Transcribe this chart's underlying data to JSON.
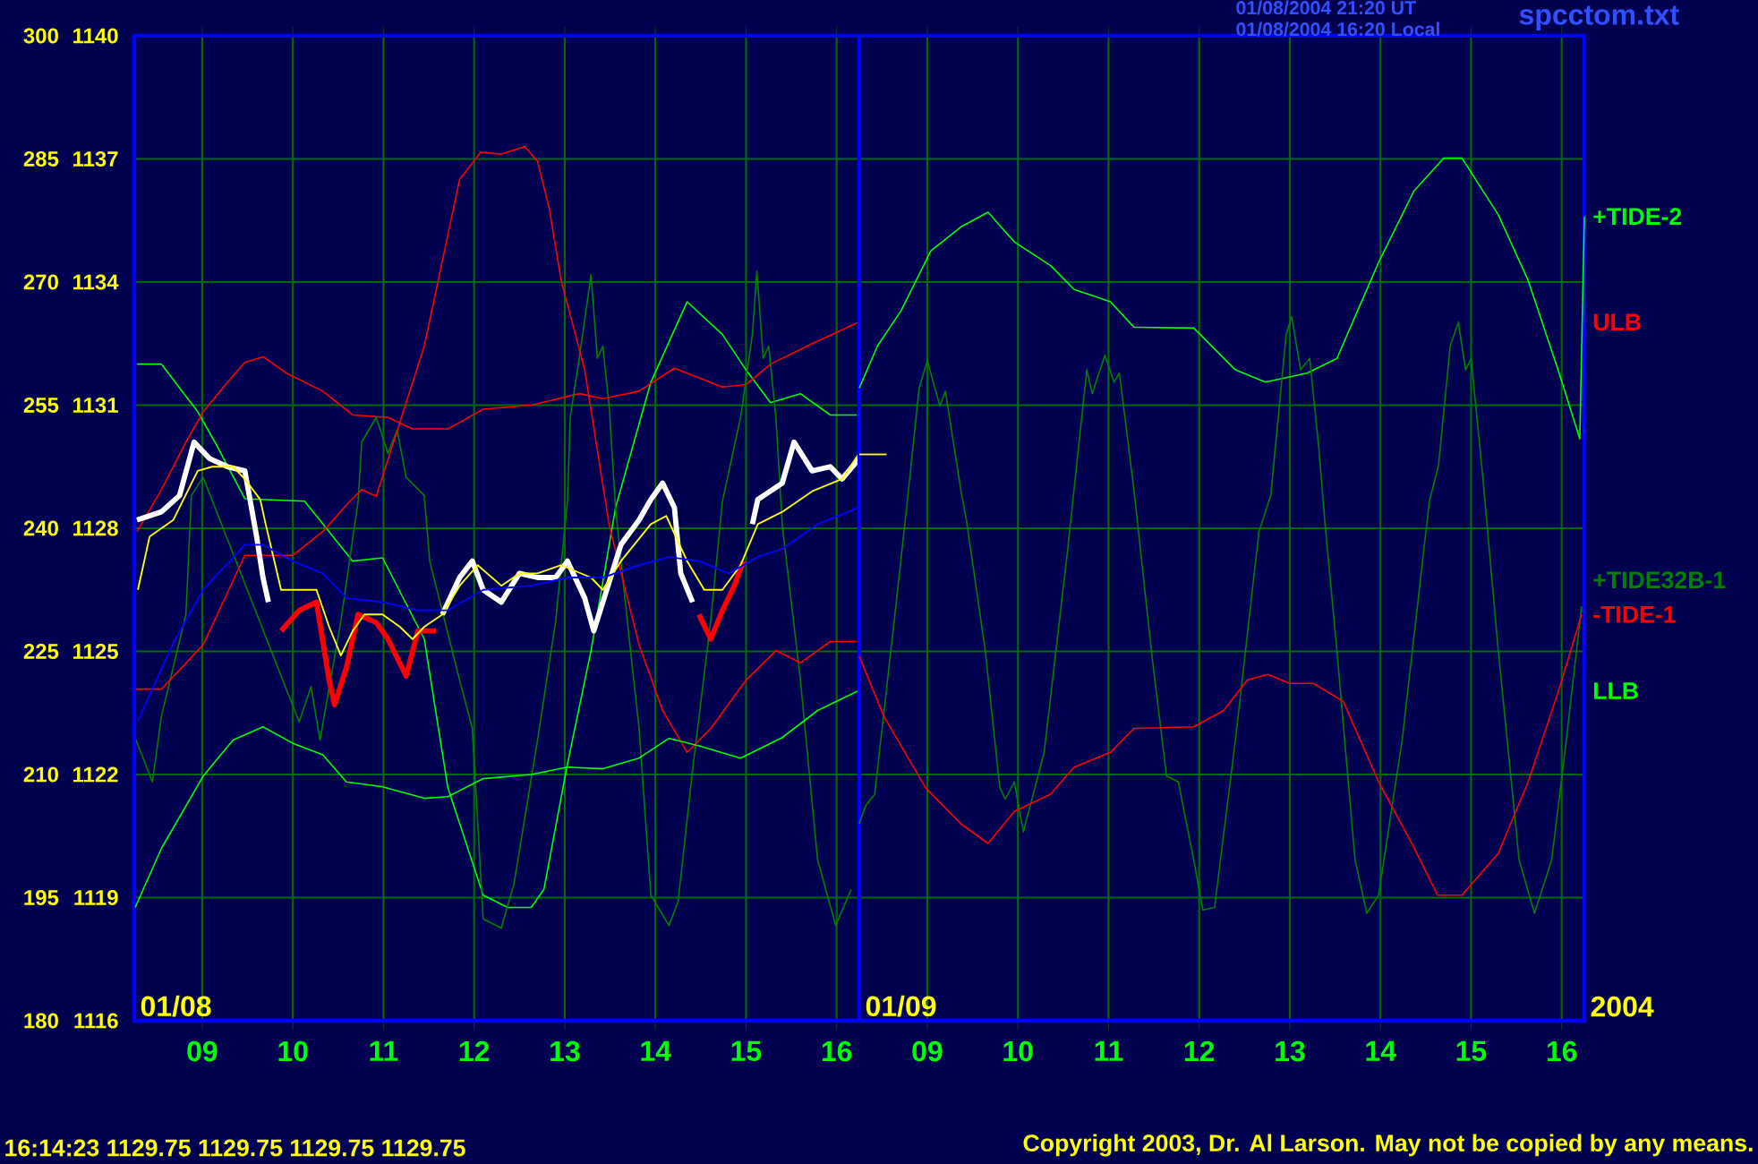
{
  "chart_data": [
    {
      "type": "line",
      "xlim": [
        8.25,
        16.25
      ],
      "xticks": [
        {
          "value": 9,
          "label": "09"
        },
        {
          "value": 10,
          "label": "10"
        },
        {
          "value": 11,
          "label": "11"
        },
        {
          "value": 12,
          "label": "12"
        },
        {
          "value": 13,
          "label": "13"
        },
        {
          "value": 14,
          "label": "14"
        },
        {
          "value": 15,
          "label": "15"
        },
        {
          "value": 16,
          "label": "16"
        }
      ],
      "ylim": [
        180,
        300
      ],
      "yticks": [
        180,
        195,
        210,
        225,
        240,
        255,
        270,
        285,
        300
      ],
      "y2lim": [
        1116,
        1140
      ],
      "y2ticks": [
        1116,
        1119,
        1122,
        1125,
        1128,
        1131,
        1134,
        1137,
        1140
      ],
      "grid": true,
      "series": [
        {
          "color": "#00ff00",
          "axis": "y",
          "x": [
            8.28,
            8.55,
            8.95,
            9.14,
            9.47,
            10.13,
            10.66,
            10.99,
            11.45,
            11.71,
            12.1,
            12.37,
            12.63,
            12.77,
            13.03,
            13.29,
            13.56,
            13.95,
            14.35,
            14.74,
            15.0,
            15.27,
            15.6,
            15.93,
            16.22
          ],
          "values": [
            260,
            260,
            254.2,
            250.5,
            243.6,
            243.3,
            236,
            236.4,
            226.5,
            208.4,
            195.3,
            193.8,
            193.8,
            196,
            211.3,
            225.1,
            242.5,
            257.8,
            267.6,
            263.6,
            259.3,
            255.3,
            256.4,
            253.8,
            253.8
          ]
        },
        {
          "name": "ULB",
          "color": "#ff0000",
          "axis": "y",
          "x": [
            8.28,
            8.55,
            8.82,
            9.01,
            9.28,
            9.47,
            9.67,
            9.93,
            10.33,
            10.66,
            11.05,
            11.32,
            11.71,
            12.1,
            12.63,
            13.16,
            13.42,
            13.82,
            14.21,
            14.74,
            15.0,
            15.27,
            15.73,
            16.24
          ],
          "values": [
            239.6,
            244.7,
            250.5,
            254.2,
            257.8,
            260.2,
            260.9,
            258.9,
            256.7,
            253.8,
            253.5,
            252.1,
            252.1,
            254.5,
            255,
            256.4,
            255.8,
            256.7,
            259.5,
            257.2,
            257.5,
            260,
            262.5,
            265.1
          ]
        },
        {
          "color": "#008000",
          "axis": "y",
          "x": [
            8.27,
            8.45,
            8.55,
            8.82,
            8.88,
            9.01,
            10.07,
            10.2,
            10.3,
            10.53,
            10.72,
            10.76,
            10.92,
            11.05,
            11.15,
            11.25,
            11.45,
            11.51,
            11.84,
            11.98,
            12.1,
            12.3,
            12.44,
            12.7,
            12.9,
            13.03,
            13.06,
            13.16,
            13.29,
            13.36,
            13.42,
            13.49,
            13.56,
            13.69,
            13.82,
            13.95,
            14.15,
            14.25,
            14.41,
            14.61,
            14.74,
            14.94,
            15.07,
            15.12,
            15.19,
            15.25,
            15.33,
            15.4,
            15.6,
            15.79,
            15.99,
            16.16
          ],
          "values": [
            214.2,
            209.1,
            217.1,
            229.5,
            244,
            246.2,
            216.4,
            220.7,
            214.2,
            228.7,
            243.3,
            250.5,
            253.5,
            249.1,
            252,
            246.2,
            244,
            236,
            221.5,
            215.6,
            192.4,
            191.3,
            196.7,
            214.2,
            228.7,
            243.3,
            253.5,
            260.7,
            270.9,
            260.7,
            262.2,
            254.9,
            242.5,
            228.7,
            215.6,
            195.3,
            191.6,
            194.5,
            210.5,
            228.7,
            243.3,
            253.5,
            263.6,
            271.3,
            260.7,
            262.2,
            253.5,
            240.4,
            221.5,
            199.6,
            191.6,
            196
          ]
        },
        {
          "color": "#ff0000",
          "axis": "y",
          "x": [
            8.27,
            8.55,
            9.01,
            9.47,
            10.0,
            10.33,
            10.63,
            10.76,
            10.92,
            11.05,
            11.45,
            11.84,
            12.07,
            12.3,
            12.56,
            12.7,
            12.83,
            12.96,
            13.22,
            13.49,
            13.82,
            14.08,
            14.35,
            14.61,
            15.0,
            15.33,
            15.6,
            15.93,
            16.22
          ],
          "values": [
            220.4,
            220.4,
            225.8,
            236.7,
            236.7,
            239.6,
            243.3,
            244.7,
            243.9,
            248.4,
            262.2,
            282.5,
            285.8,
            285.6,
            286.5,
            284.7,
            278.9,
            270.2,
            259.3,
            240.4,
            225.8,
            217.8,
            212.7,
            215.6,
            221.5,
            225.1,
            223.6,
            226.2,
            226.2
          ]
        },
        {
          "name": "LLB",
          "color": "#00ff00",
          "axis": "y",
          "x": [
            8.26,
            8.55,
            9.01,
            9.34,
            9.67,
            10.0,
            10.33,
            10.59,
            10.99,
            11.45,
            11.71,
            12.1,
            12.63,
            13.03,
            13.42,
            13.82,
            14.15,
            14.48,
            14.94,
            15.4,
            15.79,
            16.24
          ],
          "values": [
            193.8,
            201,
            209.8,
            214.2,
            215.8,
            213.8,
            212.4,
            209.1,
            208.5,
            207.1,
            207.3,
            209.5,
            210,
            210.9,
            210.7,
            212,
            214.4,
            213.5,
            212,
            214.5,
            217.8,
            220.2
          ]
        },
        {
          "color": "#ffffff",
          "axis": "y2",
          "x": [
            8.28,
            8.55,
            8.75,
            8.91,
            9.08,
            9.28,
            9.47,
            9.6,
            9.67,
            9.73,
            10.5,
            11.65,
            11.84,
            11.98,
            12.1,
            12.3,
            12.5,
            12.7,
            12.9,
            13.03,
            13.22,
            13.32,
            13.62,
            13.82,
            13.95,
            14.08,
            14.21,
            14.28,
            14.41,
            14.7,
            15.07,
            15.13,
            15.4,
            15.53,
            15.73,
            15.93,
            16.06,
            16.25
          ],
          "values": [
            1128.2,
            1128.4,
            1128.8,
            1130.1,
            1129.7,
            1129.5,
            1129.4,
            1127.8,
            1126.8,
            1126.2,
            null,
            1125.9,
            1126.8,
            1127.2,
            1126.5,
            1126.2,
            1126.9,
            1126.8,
            1126.8,
            1127.2,
            1126.3,
            1125.5,
            1127.6,
            1128.2,
            1128.7,
            1129.1,
            1128.5,
            1126.9,
            1126.2,
            null,
            1128.1,
            1128.7,
            1129.1,
            1130.1,
            1129.4,
            1129.5,
            1129.2,
            1129.7
          ]
        },
        {
          "color": "#ff0000",
          "axis": "y2",
          "x": [
            9.87,
            10.07,
            10.26,
            10.4,
            10.46,
            10.59,
            10.72,
            10.92,
            11.05,
            11.25,
            11.38,
            11.58,
            13.0,
            14.48,
            14.61,
            14.74,
            14.87,
            14.97
          ],
          "values": [
            1125.5,
            1126.0,
            1126.2,
            1124.3,
            1123.7,
            1124.6,
            1125.9,
            1125.7,
            1125.3,
            1124.4,
            1125.5,
            1125.5,
            null,
            1125.9,
            1125.3,
            1126.0,
            1126.6,
            1127.2
          ]
        },
        {
          "color": "#ffff00",
          "axis": "y2",
          "x": [
            8.29,
            8.42,
            8.68,
            8.95,
            9.11,
            9.34,
            9.47,
            9.64,
            9.7,
            9.87,
            10.0,
            10.26,
            10.4,
            10.53,
            10.66,
            10.79,
            10.99,
            11.18,
            11.32,
            11.45,
            11.65,
            11.84,
            12.04,
            12.3,
            12.5,
            12.7,
            12.96,
            13.29,
            13.42,
            13.62,
            13.95,
            14.12,
            14.35,
            14.54,
            14.74,
            14.94,
            15.13,
            15.4,
            15.73,
            16.06,
            16.24
          ],
          "values": [
            1126.5,
            1127.8,
            1128.2,
            1129.4,
            1129.5,
            1129.5,
            1129.2,
            1128.7,
            1128.1,
            1126.5,
            1126.5,
            1126.5,
            1125.6,
            1124.9,
            1125.5,
            1125.9,
            1125.9,
            1125.6,
            1125.3,
            1125.6,
            1125.9,
            1126.6,
            1127.1,
            1126.6,
            1126.9,
            1126.9,
            1127.1,
            1126.8,
            1126.5,
            1127.2,
            1128.1,
            1128.3,
            1127.2,
            1126.5,
            1126.5,
            1127.1,
            1128.1,
            1128.4,
            1128.9,
            1129.2,
            1129.8
          ]
        },
        {
          "color": "#0000ff",
          "axis": "y2",
          "x": [
            8.29,
            8.68,
            9.01,
            9.47,
            9.67,
            10.0,
            10.33,
            10.59,
            10.99,
            11.38,
            11.71,
            12.1,
            12.63,
            13.03,
            13.42,
            13.82,
            14.15,
            14.48,
            14.81,
            15.13,
            15.4,
            15.79,
            16.24
          ],
          "values": [
            1123.3,
            1125.2,
            1126.5,
            1127.6,
            1127.6,
            1127.2,
            1126.9,
            1126.3,
            1126.2,
            1126.0,
            1126.0,
            1126.5,
            1126.6,
            1126.8,
            1126.8,
            1127.1,
            1127.3,
            1127.2,
            1126.9,
            1127.3,
            1127.5,
            1128.1,
            1128.5
          ]
        }
      ],
      "annotations": [
        "01/08",
        "16:14:23  1129.75 1129.75 1129.75 1129.75"
      ]
    },
    {
      "type": "line",
      "xlim": [
        8.25,
        16.25
      ],
      "xticks": [
        {
          "value": 9,
          "label": "09"
        },
        {
          "value": 10,
          "label": "10"
        },
        {
          "value": 11,
          "label": "11"
        },
        {
          "value": 12,
          "label": "12"
        },
        {
          "value": 13,
          "label": "13"
        },
        {
          "value": 14,
          "label": "14"
        },
        {
          "value": 15,
          "label": "15"
        },
        {
          "value": 16,
          "label": "16"
        }
      ],
      "ylim": [
        180,
        300
      ],
      "yticks": [
        180,
        195,
        210,
        225,
        240,
        255,
        270,
        285,
        300
      ],
      "y2lim": [
        1116,
        1140
      ],
      "tick_labels": "x",
      "grid": true,
      "series": [
        {
          "name": "+TIDE-2",
          "color": "#00ff00",
          "axis": "y",
          "x": [
            8.25,
            8.45,
            8.71,
            9.04,
            9.37,
            9.67,
            9.96,
            10.36,
            10.62,
            11.02,
            11.28,
            11.94,
            12.4,
            12.73,
            13.19,
            13.52,
            13.98,
            14.37,
            14.7,
            14.9,
            15.3,
            15.63,
            15.96,
            16.2,
            16.25
          ],
          "values": [
            257.1,
            262.2,
            266.5,
            273.8,
            276.7,
            278.5,
            274.9,
            272,
            269.1,
            267.6,
            264.5,
            264.4,
            259.3,
            257.8,
            258.9,
            260.7,
            272.4,
            281.1,
            285.1,
            285.1,
            278.2,
            270.2,
            259.3,
            250.9,
            278
          ]
        },
        {
          "name": "+TIDE32B-1",
          "color": "#008000",
          "axis": "y",
          "x": [
            8.25,
            8.32,
            8.42,
            8.65,
            8.78,
            8.91,
            9.0,
            9.14,
            9.2,
            9.37,
            9.43,
            9.64,
            9.8,
            9.86,
            9.96,
            10.06,
            10.29,
            10.55,
            10.76,
            10.82,
            10.96,
            11.06,
            11.12,
            11.28,
            11.48,
            11.64,
            11.77,
            11.94,
            12.04,
            12.17,
            12.4,
            12.66,
            12.79,
            12.96,
            13.02,
            13.12,
            13.22,
            13.32,
            13.39,
            13.52,
            13.72,
            13.85,
            13.98,
            14.24,
            14.54,
            14.64,
            14.77,
            14.86,
            14.94,
            15.0,
            15.13,
            15.3,
            15.53,
            15.7,
            15.89,
            16.02,
            16.22
          ],
          "values": [
            204,
            206.2,
            207.6,
            230.2,
            243.3,
            257.1,
            260.4,
            254.9,
            256.7,
            244.7,
            241.1,
            225.1,
            208.4,
            207,
            209.1,
            203,
            212.7,
            237.5,
            259.3,
            256.4,
            261.1,
            257.8,
            258.9,
            244.7,
            224.4,
            209.8,
            209.1,
            199.6,
            193.5,
            193.8,
            214.2,
            239.6,
            244,
            263.6,
            265.8,
            259.3,
            260.7,
            249.8,
            240.4,
            225.1,
            199.6,
            193.1,
            195.3,
            214.2,
            243.3,
            247.6,
            262.2,
            265.1,
            259.3,
            260.7,
            246.2,
            225.1,
            199.6,
            193.1,
            199.6,
            211.3,
            230.5
          ]
        },
        {
          "name": "-TIDE-1",
          "color": "#ff0000",
          "axis": "y",
          "x": [
            8.25,
            8.52,
            8.98,
            9.37,
            9.67,
            9.96,
            10.36,
            10.62,
            11.02,
            11.28,
            11.94,
            12.27,
            12.53,
            12.76,
            13.0,
            13.26,
            13.59,
            13.98,
            14.37,
            14.63,
            14.9,
            15.3,
            15.63,
            15.96,
            16.22
          ],
          "values": [
            224.4,
            217.1,
            208.4,
            204,
            201.6,
            205.5,
            207.6,
            210.9,
            212.7,
            215.6,
            215.8,
            217.8,
            221.5,
            222.2,
            221.1,
            221.1,
            218.9,
            209.1,
            201.1,
            195.3,
            195.3,
            200.4,
            209.1,
            220,
            229.5
          ]
        },
        {
          "color": "#ffff00",
          "axis": "y2",
          "x": [
            8.25,
            8.55
          ],
          "values": [
            1129.8,
            1129.8
          ]
        }
      ],
      "annotations": [
        "01/09",
        "2004",
        "01/08/2004 21:20 UT",
        "01/08/2004 16:20 Local",
        "spcctom.txt",
        "Copyright 2003, Dr. Al Larson. May not be copied by any means."
      ]
    }
  ]
}
